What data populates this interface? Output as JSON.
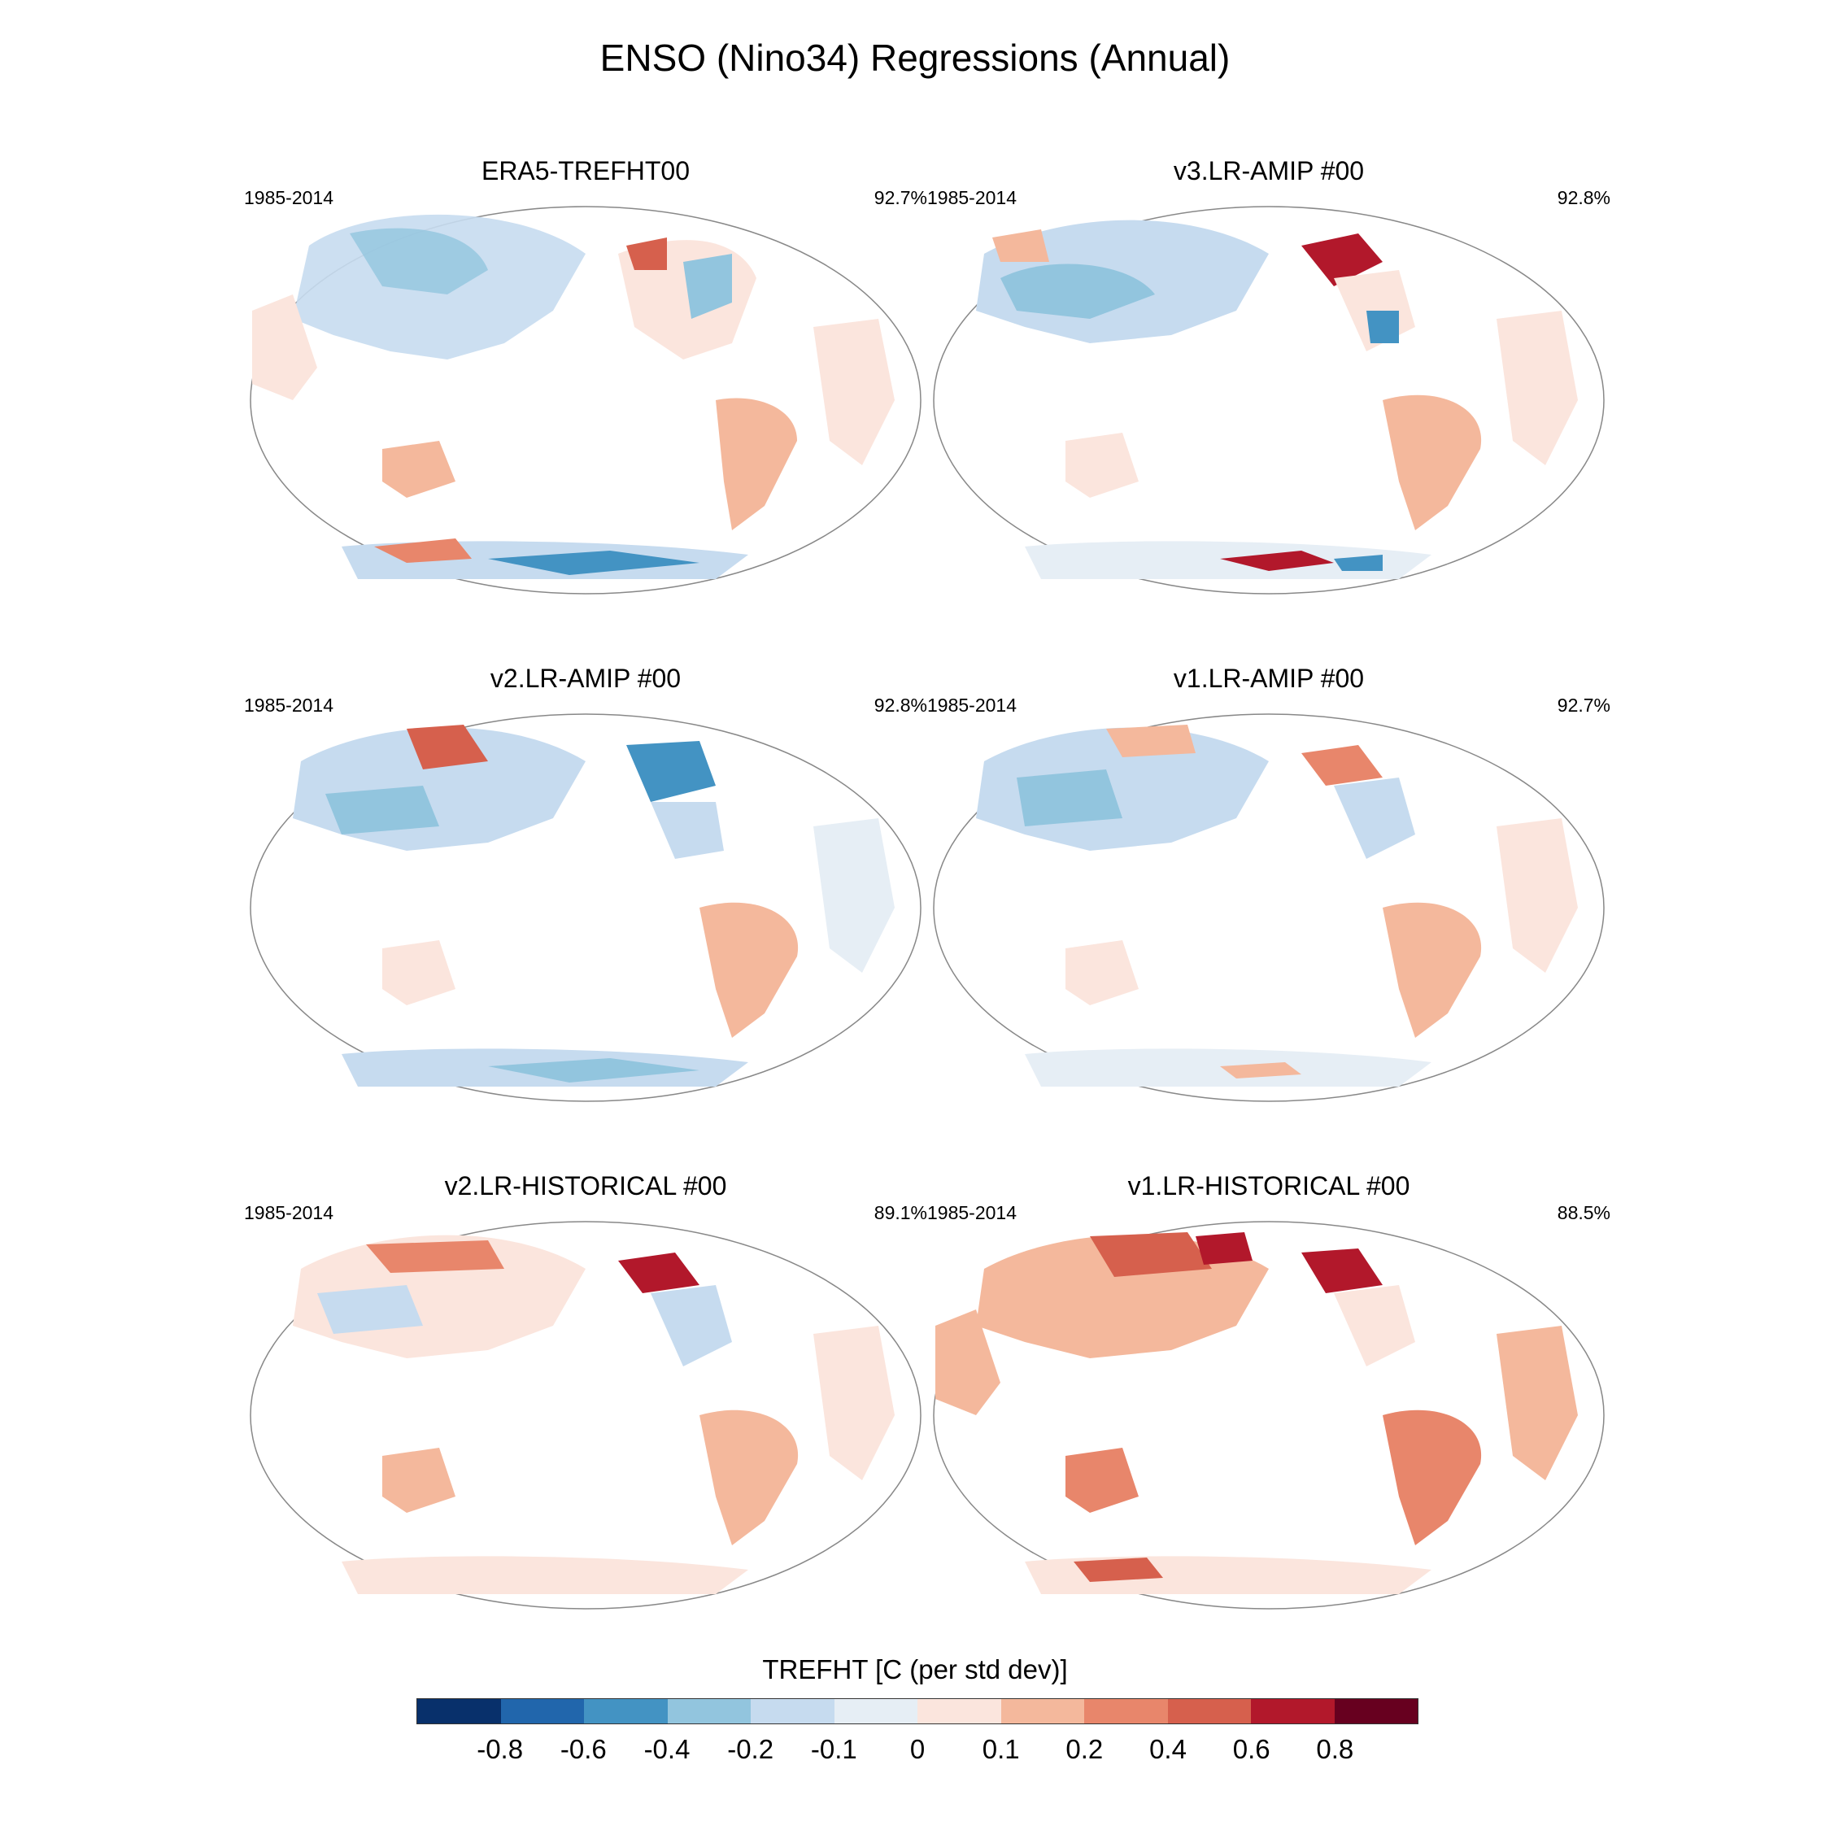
{
  "title": "ENSO (Nino34) Regressions (Annual)",
  "panels": [
    {
      "title": "ERA5-TREFHT00",
      "left_label": "1985-2014",
      "right_label": "92.7%"
    },
    {
      "title": "v3.LR-AMIP  #00",
      "left_label": "1985-2014",
      "right_label": "92.8%"
    },
    {
      "title": "v2.LR-AMIP  #00",
      "left_label": "1985-2014",
      "right_label": "92.8%"
    },
    {
      "title": "v1.LR-AMIP  #00",
      "left_label": "1985-2014",
      "right_label": "92.7%"
    },
    {
      "title": "v2.LR-HISTORICAL  #00",
      "left_label": "1985-2014",
      "right_label": "89.1%"
    },
    {
      "title": "v1.LR-HISTORICAL  #00",
      "left_label": "1985-2014",
      "right_label": "88.5%"
    }
  ],
  "colorbar": {
    "title": "TREFHT [C (per std dev)]",
    "labels": [
      "-0.8",
      "-0.6",
      "-0.4",
      "-0.2",
      "-0.1",
      "0",
      "0.1",
      "0.2",
      "0.4",
      "0.6",
      "0.8"
    ],
    "colors": [
      "#08306b",
      "#2166ac",
      "#4393c3",
      "#92c5de",
      "#c6dbef",
      "#e6eef5",
      "#fbe5dd",
      "#f4b89c",
      "#e8866b",
      "#d6604d",
      "#b2182b",
      "#67001f"
    ]
  }
}
